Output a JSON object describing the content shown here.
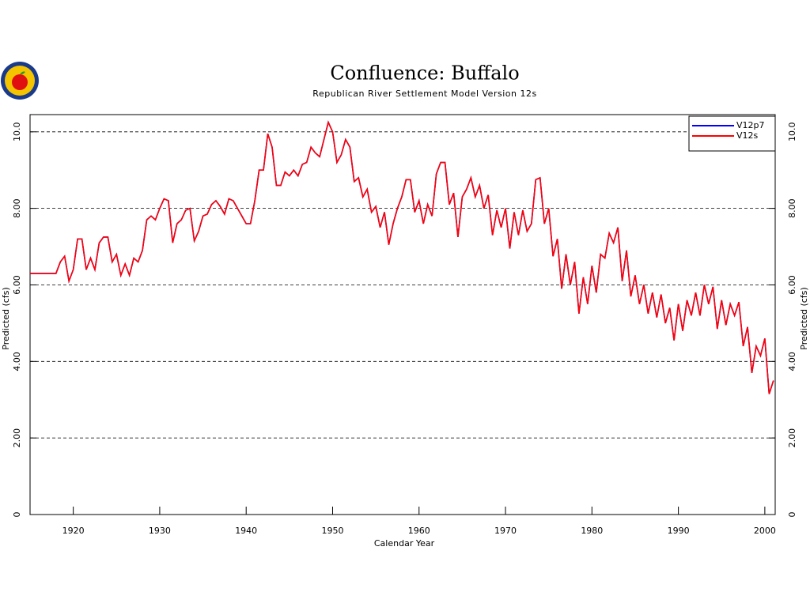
{
  "chart_data": {
    "type": "line",
    "title": "Confluence:  Buffalo",
    "subtitle": "Republican River Settlement Model Version 12s",
    "xlabel": "Calendar Year",
    "ylabel": "Predicted (cfs)",
    "y2label": "Predicted (cfs)",
    "xlim": [
      1915,
      2001.2
    ],
    "xticks": [
      1920,
      1930,
      1940,
      1950,
      1960,
      1970,
      1980,
      1990,
      2000
    ],
    "ylim": [
      0,
      10.45
    ],
    "yticks": [
      0,
      {
        "value": 2,
        "label": "2.00"
      },
      {
        "value": 4,
        "label": "4.00"
      },
      {
        "value": 6,
        "label": "6.00"
      },
      {
        "value": 8,
        "label": "8.00"
      },
      {
        "value": 10,
        "label": "10.0"
      }
    ],
    "y2lim": [
      0,
      10.45
    ],
    "y2ticks": [
      0,
      {
        "value": 2,
        "label": "2.00"
      },
      {
        "value": 4,
        "label": "4.00"
      },
      {
        "value": 6,
        "label": "6.00"
      },
      {
        "value": 8,
        "label": "8.00"
      },
      {
        "value": 10,
        "label": "10.0"
      }
    ],
    "grid": true,
    "legend": "upper right",
    "x": [
      1915,
      1918,
      1918.5,
      1919,
      1919.5,
      1920,
      1920.5,
      1921,
      1921.5,
      1922,
      1922.5,
      1923,
      1923.5,
      1924,
      1924.5,
      1925,
      1925.5,
      1926,
      1926.5,
      1927,
      1927.5,
      1928,
      1928.5,
      1929,
      1929.5,
      1930,
      1930.5,
      1931,
      1931.5,
      1932,
      1932.5,
      1933,
      1933.5,
      1934,
      1934.5,
      1935,
      1935.5,
      1936,
      1936.5,
      1937,
      1937.5,
      1938,
      1938.5,
      1939,
      1939.5,
      1940,
      1940.5,
      1941,
      1941.5,
      1942,
      1942.5,
      1943,
      1943.5,
      1944,
      1944.5,
      1945,
      1945.5,
      1946,
      1946.5,
      1947,
      1947.5,
      1948,
      1948.5,
      1949,
      1949.5,
      1950,
      1950.5,
      1951,
      1951.5,
      1952,
      1952.5,
      1953,
      1953.5,
      1954,
      1954.5,
      1955,
      1955.5,
      1956,
      1956.5,
      1957,
      1957.5,
      1958,
      1958.5,
      1959,
      1959.5,
      1960,
      1960.5,
      1961,
      1961.5,
      1962,
      1962.5,
      1963,
      1963.5,
      1964,
      1964.5,
      1965,
      1965.5,
      1966,
      1966.5,
      1967,
      1967.5,
      1968,
      1968.5,
      1969,
      1969.5,
      1970,
      1970.5,
      1971,
      1971.5,
      1972,
      1972.5,
      1973,
      1973.5,
      1974,
      1974.5,
      1975,
      1975.5,
      1976,
      1976.5,
      1977,
      1977.5,
      1978,
      1978.5,
      1979,
      1979.5,
      1980,
      1980.5,
      1981,
      1981.5,
      1982,
      1982.5,
      1983,
      1983.5,
      1984,
      1984.5,
      1985,
      1985.5,
      1986,
      1986.5,
      1987,
      1987.5,
      1988,
      1988.5,
      1989,
      1989.5,
      1990,
      1990.5,
      1991,
      1991.5,
      1992,
      1992.5,
      1993,
      1993.5,
      1994,
      1994.5,
      1995,
      1995.5,
      1996,
      1996.5,
      1997,
      1997.5,
      1998,
      1998.5,
      1999,
      1999.5,
      2000,
      2000.5,
      2001
    ],
    "series": [
      {
        "name": "V12p7",
        "color": "#0000ff",
        "values": [
          6.3,
          6.3,
          6.6,
          6.75,
          6.1,
          6.4,
          7.2,
          7.2,
          6.4,
          6.7,
          6.4,
          7.1,
          7.25,
          7.25,
          6.6,
          6.8,
          6.25,
          6.55,
          6.25,
          6.7,
          6.6,
          6.9,
          7.7,
          7.8,
          7.7,
          8.0,
          8.25,
          8.2,
          7.1,
          7.6,
          7.7,
          7.95,
          8.0,
          7.15,
          7.4,
          7.8,
          7.85,
          8.1,
          8.2,
          8.05,
          7.85,
          8.25,
          8.2,
          8.0,
          7.8,
          7.6,
          7.6,
          8.2,
          9.0,
          9.0,
          9.95,
          9.6,
          8.6,
          8.6,
          8.95,
          8.85,
          9.0,
          8.85,
          9.15,
          9.2,
          9.6,
          9.45,
          9.35,
          9.8,
          10.25,
          10.0,
          9.2,
          9.4,
          9.8,
          9.6,
          8.7,
          8.8,
          8.3,
          8.5,
          7.9,
          8.05,
          7.5,
          7.9,
          7.05,
          7.6,
          8.0,
          8.3,
          8.75,
          8.75,
          7.9,
          8.2,
          7.6,
          8.1,
          7.8,
          8.9,
          9.2,
          9.2,
          8.1,
          8.4,
          7.25,
          8.3,
          8.5,
          8.8,
          8.3,
          8.6,
          8.0,
          8.35,
          7.3,
          7.95,
          7.5,
          8.0,
          6.95,
          7.9,
          7.3,
          7.95,
          7.4,
          7.6,
          8.75,
          8.8,
          7.6,
          8.0,
          6.75,
          7.2,
          5.9,
          6.8,
          6.0,
          6.6,
          5.25,
          6.2,
          5.5,
          6.5,
          5.8,
          6.8,
          6.7,
          7.35,
          7.1,
          7.5,
          6.1,
          6.9,
          5.7,
          6.25,
          5.5,
          6.0,
          5.25,
          5.8,
          5.15,
          5.75,
          5.0,
          5.4,
          4.55,
          5.5,
          4.8,
          5.6,
          5.2,
          5.8,
          5.2,
          6.0,
          5.5,
          5.95,
          4.85,
          5.6,
          4.95,
          5.5,
          5.2,
          5.55,
          4.4,
          4.9,
          3.7,
          4.4,
          4.15,
          4.6,
          3.15,
          3.5
        ]
      },
      {
        "name": "V12s",
        "color": "#ff0000",
        "values": [
          6.3,
          6.3,
          6.6,
          6.75,
          6.1,
          6.4,
          7.2,
          7.2,
          6.4,
          6.7,
          6.4,
          7.1,
          7.25,
          7.25,
          6.6,
          6.8,
          6.25,
          6.55,
          6.25,
          6.7,
          6.6,
          6.9,
          7.7,
          7.8,
          7.7,
          8.0,
          8.25,
          8.2,
          7.1,
          7.6,
          7.7,
          7.95,
          8.0,
          7.15,
          7.4,
          7.8,
          7.85,
          8.1,
          8.2,
          8.05,
          7.85,
          8.25,
          8.2,
          8.0,
          7.8,
          7.6,
          7.6,
          8.2,
          9.0,
          9.0,
          9.95,
          9.6,
          8.6,
          8.6,
          8.95,
          8.85,
          9.0,
          8.85,
          9.15,
          9.2,
          9.6,
          9.45,
          9.35,
          9.8,
          10.25,
          10.0,
          9.2,
          9.4,
          9.8,
          9.6,
          8.7,
          8.8,
          8.3,
          8.5,
          7.9,
          8.05,
          7.5,
          7.9,
          7.05,
          7.6,
          8.0,
          8.3,
          8.75,
          8.75,
          7.9,
          8.2,
          7.6,
          8.1,
          7.8,
          8.9,
          9.2,
          9.2,
          8.1,
          8.4,
          7.25,
          8.3,
          8.5,
          8.8,
          8.3,
          8.6,
          8.0,
          8.35,
          7.3,
          7.95,
          7.5,
          8.0,
          6.95,
          7.9,
          7.3,
          7.95,
          7.4,
          7.6,
          8.75,
          8.8,
          7.6,
          8.0,
          6.75,
          7.2,
          5.9,
          6.8,
          6.0,
          6.6,
          5.25,
          6.2,
          5.5,
          6.5,
          5.8,
          6.8,
          6.7,
          7.35,
          7.1,
          7.5,
          6.1,
          6.9,
          5.7,
          6.25,
          5.5,
          6.0,
          5.25,
          5.8,
          5.15,
          5.75,
          5.0,
          5.4,
          4.55,
          5.5,
          4.8,
          5.6,
          5.2,
          5.8,
          5.2,
          6.0,
          5.5,
          5.95,
          4.85,
          5.6,
          4.95,
          5.5,
          5.2,
          5.55,
          4.4,
          4.9,
          3.7,
          4.4,
          4.15,
          4.6,
          3.15,
          3.5
        ]
      }
    ]
  }
}
